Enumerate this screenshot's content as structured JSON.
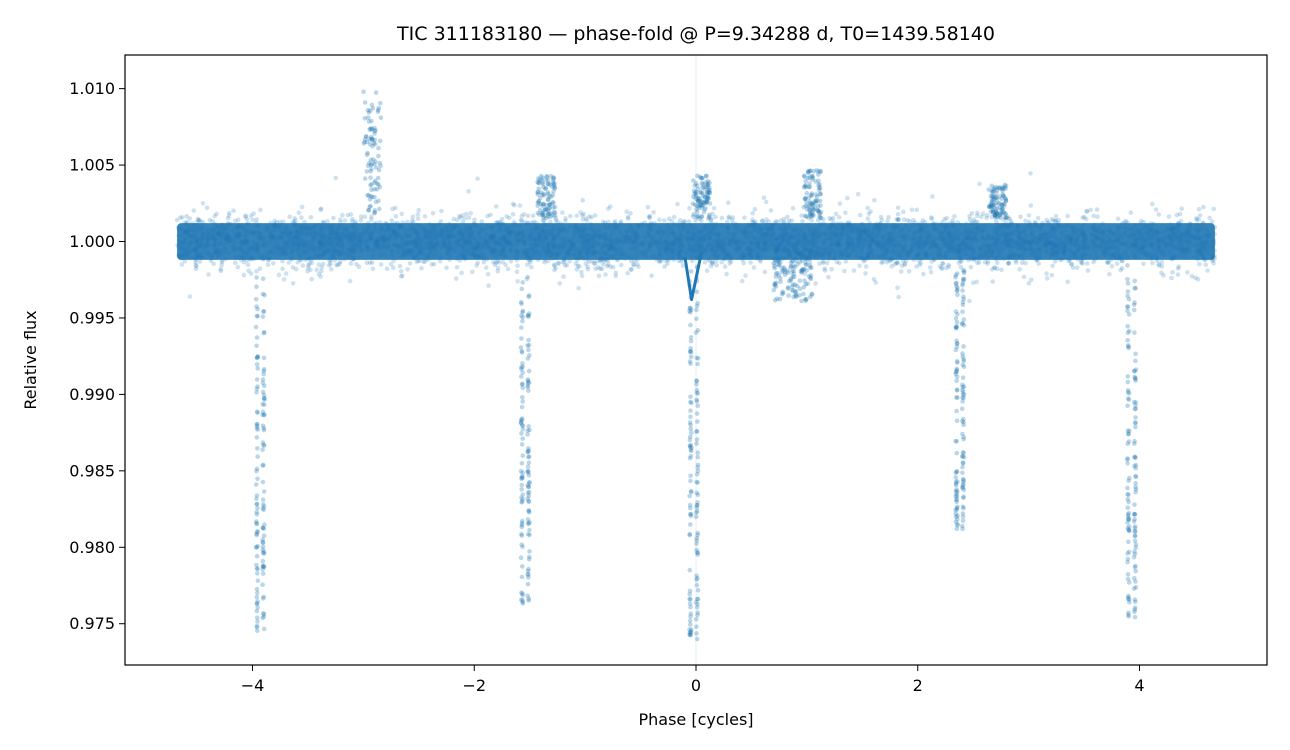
{
  "chart_data": {
    "type": "scatter",
    "title": "TIC 311183180 — phase-fold @ P=9.34288 d, T0=1439.58140",
    "xlabel": "Phase [cycles]",
    "ylabel": "Relative flux",
    "xlim": [
      -5.15,
      5.15
    ],
    "ylim": [
      0.9723,
      1.0122
    ],
    "x_ticks": [
      -4,
      -2,
      0,
      2,
      4
    ],
    "x_tick_labels": [
      "−4",
      "−2",
      "0",
      "2",
      "4"
    ],
    "y_ticks": [
      0.975,
      0.98,
      0.985,
      0.99,
      0.995,
      1.0,
      1.005,
      1.01
    ],
    "y_tick_labels": [
      "0.975",
      "0.980",
      "0.985",
      "0.990",
      "0.995",
      "1.000",
      "1.005",
      "1.010"
    ],
    "grid": false,
    "legend": "none",
    "colors": {
      "points": "#1f77b4",
      "model": "#1f77b4",
      "marker_line": "#1f77b4"
    },
    "series": [
      {
        "kind": "baseline_band",
        "x_range": [
          -4.68,
          4.68
        ],
        "center": 1.0,
        "core_halfwidth": 0.0012,
        "scatter_sigma": 0.0009
      },
      {
        "kind": "transit_dips",
        "dips": [
          {
            "phase": -3.93,
            "min_flux": 0.9745
          },
          {
            "phase": -1.54,
            "min_flux": 0.9763
          },
          {
            "phase": -0.02,
            "min_flux": 0.974
          },
          {
            "phase": 2.38,
            "min_flux": 0.9812
          },
          {
            "phase": 3.93,
            "min_flux": 0.975
          }
        ]
      },
      {
        "kind": "brightening",
        "events": [
          {
            "phase": -2.92,
            "max_flux": 1.0098
          },
          {
            "phase": -1.35,
            "max_flux": 1.0043
          },
          {
            "phase": 0.05,
            "max_flux": 1.0044
          },
          {
            "phase": 1.05,
            "max_flux": 1.0047
          },
          {
            "phase": 2.72,
            "max_flux": 1.0037
          }
        ]
      },
      {
        "kind": "model_line",
        "points": [
          [
            -0.1,
            0.999
          ],
          [
            -0.04,
            0.9962
          ],
          [
            0.05,
            0.9993
          ]
        ]
      },
      {
        "kind": "reference_line",
        "x": 0
      }
    ]
  }
}
